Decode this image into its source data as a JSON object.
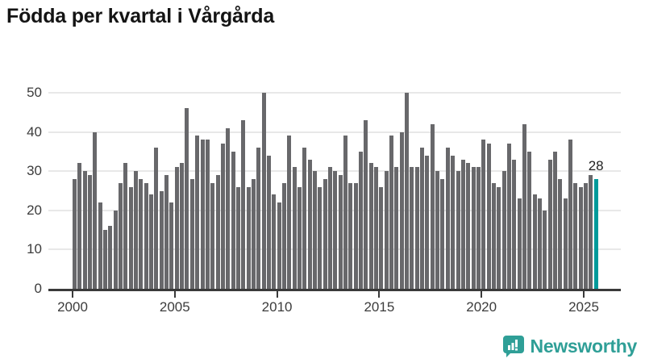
{
  "title": "Födda per kvartal i Vårgårda",
  "chart_data": {
    "type": "bar",
    "title": "Födda per kvartal i Vårgårda",
    "x_start_year": 2000,
    "x_start_quarter": 1,
    "x_end_year": 2025,
    "x_end_quarter": 3,
    "values": [
      28,
      32,
      30,
      29,
      40,
      22,
      15,
      16,
      20,
      27,
      32,
      26,
      30,
      28,
      27,
      24,
      36,
      25,
      29,
      22,
      31,
      32,
      46,
      28,
      39,
      38,
      38,
      27,
      29,
      37,
      41,
      35,
      26,
      43,
      26,
      28,
      36,
      50,
      34,
      24,
      22,
      27,
      39,
      31,
      26,
      36,
      33,
      30,
      26,
      28,
      31,
      30,
      29,
      39,
      27,
      27,
      35,
      43,
      32,
      31,
      26,
      30,
      39,
      31,
      40,
      50,
      31,
      31,
      36,
      34,
      42,
      30,
      28,
      36,
      34,
      30,
      33,
      32,
      31,
      31,
      38,
      37,
      27,
      26,
      30,
      37,
      33,
      23,
      42,
      35,
      24,
      23,
      20,
      33,
      35,
      28,
      23,
      38,
      27,
      26,
      27,
      29,
      28
    ],
    "highlight_index": 102,
    "highlight_label": "28",
    "y_ticks": [
      0,
      10,
      20,
      30,
      40,
      50
    ],
    "x_ticks": [
      "2000",
      "2005",
      "2010",
      "2015",
      "2020",
      "2025"
    ],
    "ylim": [
      0,
      52
    ],
    "grid": true,
    "legend": "none",
    "colors": {
      "bar": "#68686b",
      "highlight": "#009a9a",
      "gridline": "#e8e8e8",
      "axis": "#3a3a3a",
      "tick_text": "#3c3c3c"
    }
  },
  "branding": {
    "logo_text": "Newsworthy",
    "logo_color": "#2f9f97"
  }
}
